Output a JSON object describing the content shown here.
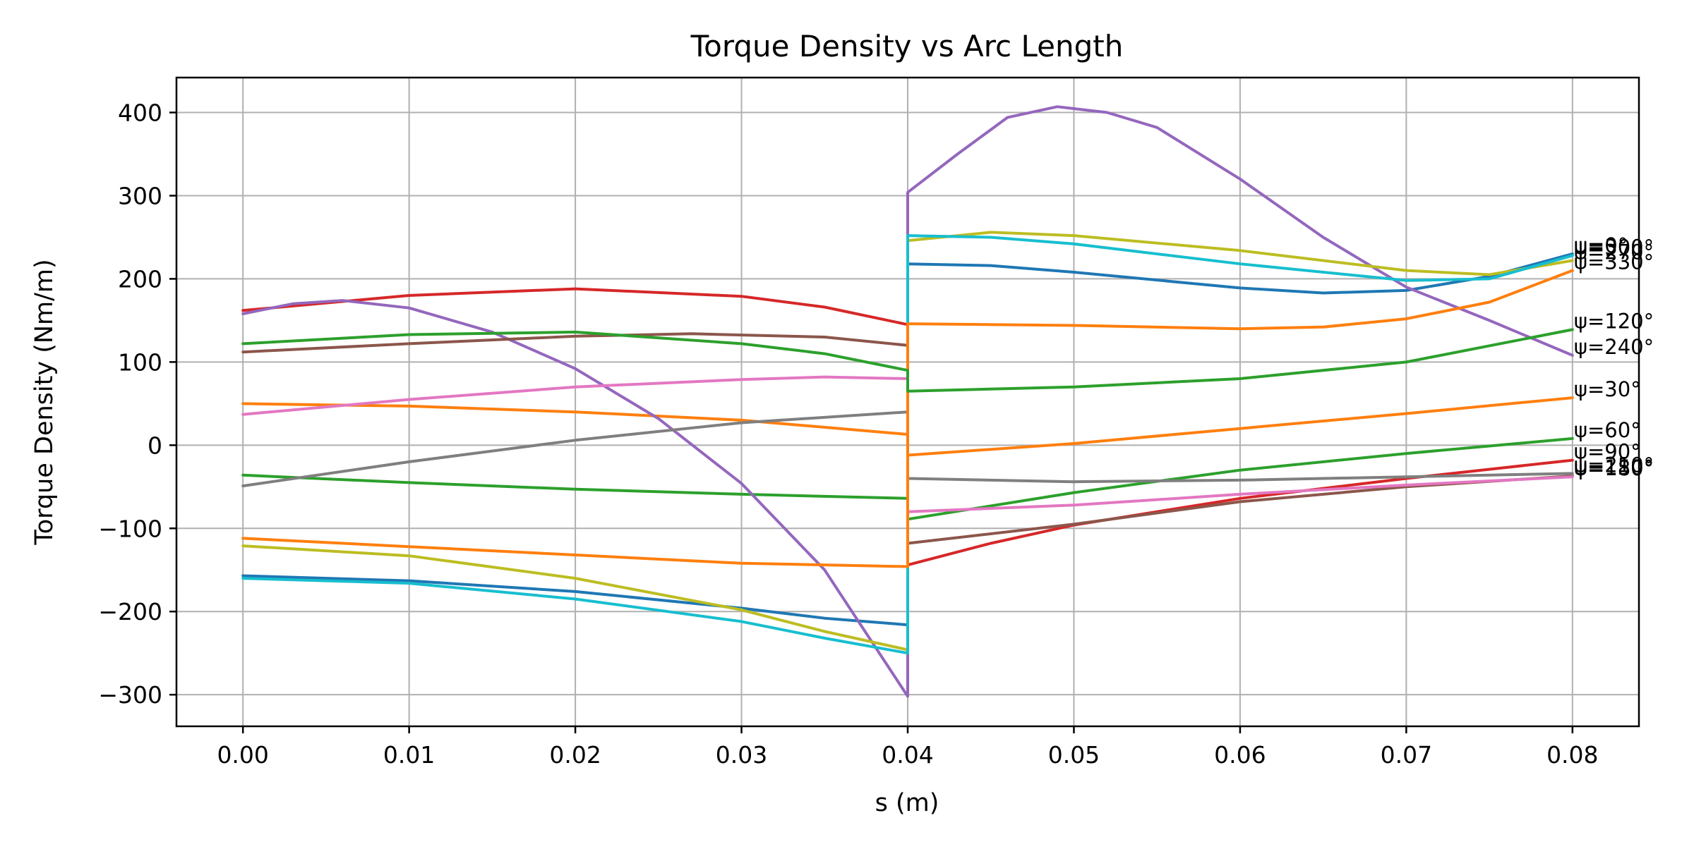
{
  "chart_data": {
    "type": "line",
    "title": "Torque Density vs Arc Length",
    "xlabel": "s (m)",
    "ylabel": "Torque Density (Nm/m)",
    "xlim": [
      -0.004,
      0.084
    ],
    "ylim": [
      -338,
      442
    ],
    "xticks": [
      0.0,
      0.01,
      0.02,
      0.03,
      0.04,
      0.05,
      0.06,
      0.07,
      0.08
    ],
    "xtick_labels": [
      "0.00",
      "0.01",
      "0.02",
      "0.03",
      "0.04",
      "0.05",
      "0.06",
      "0.07",
      "0.08"
    ],
    "yticks": [
      -300,
      -200,
      -100,
      0,
      100,
      200,
      300,
      400
    ],
    "ytick_labels": [
      "−300",
      "−200",
      "−100",
      "0",
      "100",
      "200",
      "300",
      "400"
    ],
    "grid": true,
    "legend": "none",
    "series": [
      {
        "name": "ψ=0°",
        "color": "#1f77b4",
        "end_label": "ψ=0°",
        "points": [
          [
            0,
            -157
          ],
          [
            0.01,
            -163
          ],
          [
            0.02,
            -176
          ],
          [
            0.03,
            -196
          ],
          [
            0.035,
            -208
          ],
          [
            0.04,
            -216
          ],
          [
            0.04,
            218
          ],
          [
            0.045,
            216
          ],
          [
            0.05,
            208
          ],
          [
            0.06,
            189
          ],
          [
            0.065,
            183
          ],
          [
            0.07,
            186
          ],
          [
            0.075,
            203
          ],
          [
            0.08,
            230
          ]
        ]
      },
      {
        "name": "ψ=30°",
        "color": "#ff7f0e",
        "end_label": "ψ=30°",
        "points": [
          [
            0,
            50
          ],
          [
            0.01,
            47
          ],
          [
            0.02,
            40
          ],
          [
            0.03,
            30
          ],
          [
            0.04,
            13
          ],
          [
            0.04,
            -12
          ],
          [
            0.05,
            2
          ],
          [
            0.06,
            20
          ],
          [
            0.07,
            38
          ],
          [
            0.08,
            57
          ]
        ]
      },
      {
        "name": "ψ=60°",
        "color": "#2ca02c",
        "end_label": "ψ=60°",
        "points": [
          [
            0,
            -36
          ],
          [
            0.01,
            -45
          ],
          [
            0.02,
            -53
          ],
          [
            0.03,
            -59
          ],
          [
            0.04,
            -64
          ],
          [
            0.04,
            -89
          ],
          [
            0.05,
            -57
          ],
          [
            0.06,
            -30
          ],
          [
            0.07,
            -10
          ],
          [
            0.08,
            8
          ]
        ]
      },
      {
        "name": "ψ=90°",
        "color": "#d62728",
        "end_label": "ψ=90°",
        "points": [
          [
            0,
            162
          ],
          [
            0.01,
            180
          ],
          [
            0.02,
            188
          ],
          [
            0.03,
            179
          ],
          [
            0.035,
            166
          ],
          [
            0.04,
            145
          ],
          [
            0.04,
            -144
          ],
          [
            0.045,
            -118
          ],
          [
            0.05,
            -96
          ],
          [
            0.06,
            -64
          ],
          [
            0.07,
            -40
          ],
          [
            0.08,
            -18
          ]
        ]
      },
      {
        "name": "ψ=240°",
        "color": "#9467bd",
        "end_label": "ψ=240°",
        "points": [
          [
            0,
            158
          ],
          [
            0.003,
            170
          ],
          [
            0.006,
            174
          ],
          [
            0.01,
            165
          ],
          [
            0.015,
            136
          ],
          [
            0.02,
            92
          ],
          [
            0.025,
            32
          ],
          [
            0.03,
            -46
          ],
          [
            0.035,
            -150
          ],
          [
            0.04,
            -302
          ],
          [
            0.04,
            304
          ],
          [
            0.043,
            350
          ],
          [
            0.046,
            394
          ],
          [
            0.049,
            407
          ],
          [
            0.052,
            400
          ],
          [
            0.055,
            382
          ],
          [
            0.06,
            320
          ],
          [
            0.065,
            250
          ],
          [
            0.07,
            190
          ],
          [
            0.075,
            150
          ],
          [
            0.08,
            108
          ]
        ]
      },
      {
        "name": "ψ=150°",
        "color": "#8c564b",
        "end_label": "ψ=150°",
        "points": [
          [
            0,
            112
          ],
          [
            0.01,
            122
          ],
          [
            0.02,
            131
          ],
          [
            0.027,
            134
          ],
          [
            0.035,
            130
          ],
          [
            0.04,
            120
          ],
          [
            0.04,
            -118
          ],
          [
            0.05,
            -95
          ],
          [
            0.06,
            -68
          ],
          [
            0.07,
            -50
          ],
          [
            0.08,
            -37
          ]
        ]
      },
      {
        "name": "ψ=180°",
        "color": "#e377c2",
        "end_label": "ψ=180°",
        "points": [
          [
            0,
            37
          ],
          [
            0.01,
            55
          ],
          [
            0.02,
            70
          ],
          [
            0.03,
            79
          ],
          [
            0.035,
            82
          ],
          [
            0.04,
            80
          ],
          [
            0.04,
            -80
          ],
          [
            0.05,
            -72
          ],
          [
            0.06,
            -59
          ],
          [
            0.07,
            -48
          ],
          [
            0.08,
            -38
          ]
        ]
      },
      {
        "name": "ψ=210°",
        "color": "#7f7f7f",
        "end_label": "ψ=210°",
        "points": [
          [
            0,
            -49
          ],
          [
            0.01,
            -20
          ],
          [
            0.02,
            6
          ],
          [
            0.03,
            27
          ],
          [
            0.04,
            40
          ],
          [
            0.04,
            -40
          ],
          [
            0.05,
            -44
          ],
          [
            0.06,
            -42
          ],
          [
            0.07,
            -38
          ],
          [
            0.08,
            -34
          ]
        ]
      },
      {
        "name": "ψ=270°",
        "color": "#bcbd22",
        "end_label": "ψ=270°",
        "points": [
          [
            0,
            -121
          ],
          [
            0.01,
            -133
          ],
          [
            0.02,
            -160
          ],
          [
            0.03,
            -198
          ],
          [
            0.035,
            -224
          ],
          [
            0.04,
            -246
          ],
          [
            0.04,
            246
          ],
          [
            0.045,
            256
          ],
          [
            0.05,
            252
          ],
          [
            0.06,
            234
          ],
          [
            0.07,
            210
          ],
          [
            0.075,
            205
          ],
          [
            0.08,
            222
          ]
        ]
      },
      {
        "name": "ψ=300°",
        "color": "#17becf",
        "end_label": "ψ=300°",
        "points": [
          [
            0,
            -160
          ],
          [
            0.01,
            -166
          ],
          [
            0.02,
            -185
          ],
          [
            0.03,
            -212
          ],
          [
            0.035,
            -232
          ],
          [
            0.04,
            -250
          ],
          [
            0.04,
            252
          ],
          [
            0.045,
            250
          ],
          [
            0.05,
            242
          ],
          [
            0.06,
            218
          ],
          [
            0.07,
            198
          ],
          [
            0.075,
            200
          ],
          [
            0.08,
            228
          ]
        ]
      },
      {
        "name": "ψ=330°",
        "color": "#ff7f0e",
        "end_label": "ψ=330°",
        "points": [
          [
            0,
            -112
          ],
          [
            0.01,
            -122
          ],
          [
            0.02,
            -132
          ],
          [
            0.03,
            -142
          ],
          [
            0.04,
            -146
          ],
          [
            0.04,
            146
          ],
          [
            0.05,
            144
          ],
          [
            0.06,
            140
          ],
          [
            0.065,
            142
          ],
          [
            0.07,
            152
          ],
          [
            0.075,
            172
          ],
          [
            0.08,
            210
          ]
        ]
      },
      {
        "name": "ψ=120°",
        "color": "#2ca02c",
        "end_label": "ψ=120°",
        "points": [
          [
            0,
            122
          ],
          [
            0.01,
            133
          ],
          [
            0.02,
            136
          ],
          [
            0.03,
            122
          ],
          [
            0.035,
            110
          ],
          [
            0.04,
            90
          ],
          [
            0.04,
            65
          ],
          [
            0.05,
            70
          ],
          [
            0.06,
            80
          ],
          [
            0.07,
            100
          ],
          [
            0.08,
            139
          ]
        ]
      }
    ]
  }
}
